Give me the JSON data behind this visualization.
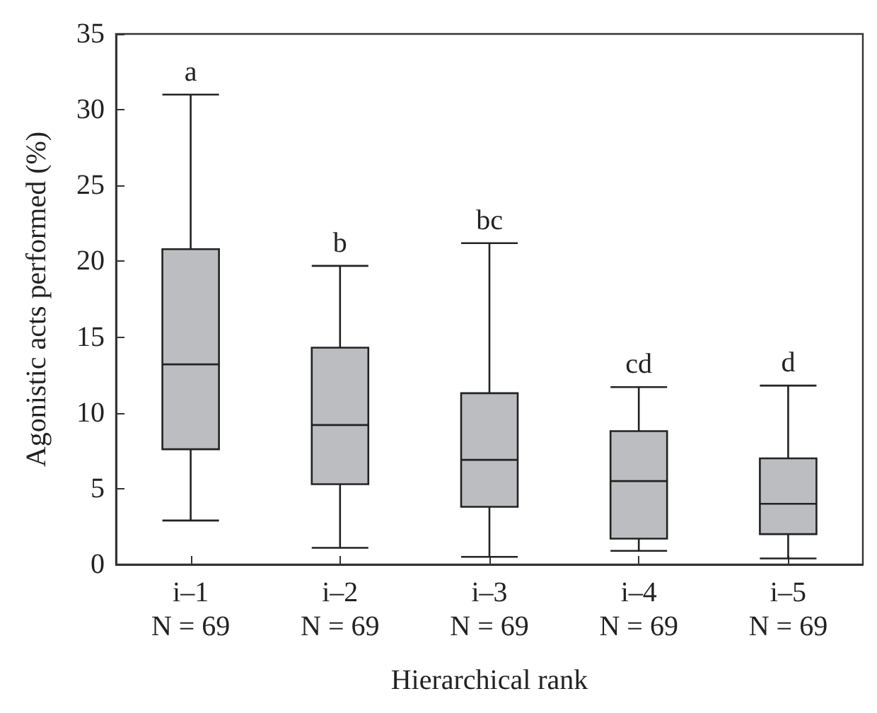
{
  "chart_data": {
    "type": "box",
    "xlabel": "Hierarchical rank",
    "ylabel": "Agonistic acts performed (%)",
    "categories": [
      "i–1\nN = 69",
      "i–2\nN = 69",
      "i–3\nN = 69",
      "i–4\nN = 69",
      "i–5\nN = 69"
    ],
    "color": "#bcbdc0",
    "boxes": [
      {
        "low": 2.9,
        "q1": 7.6,
        "median": 13.2,
        "q3": 20.8,
        "high": 31.0
      },
      {
        "low": 1.1,
        "q1": 5.3,
        "median": 9.2,
        "q3": 14.3,
        "high": 19.7
      },
      {
        "low": 0.5,
        "q1": 3.8,
        "median": 6.9,
        "q3": 11.3,
        "high": 21.2
      },
      {
        "low": 0.9,
        "q1": 1.7,
        "median": 5.5,
        "q3": 8.8,
        "high": 11.7
      },
      {
        "low": 0.4,
        "q1": 2.0,
        "median": 4.0,
        "q3": 7.0,
        "high": 11.8
      }
    ],
    "ylim": [
      0,
      35
    ],
    "yticks": [
      0,
      5,
      10,
      15,
      20,
      25,
      30,
      35
    ],
    "grid": false,
    "annotations": [
      "a",
      "b",
      "bc",
      "cd",
      "d"
    ]
  }
}
